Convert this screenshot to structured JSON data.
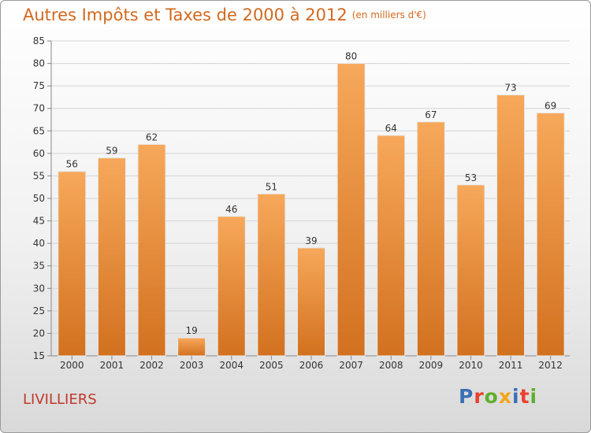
{
  "header": {
    "title": "Autres Impôts et Taxes de 2000 à 2012",
    "unit": "(en milliers d'€)"
  },
  "footer": {
    "city": "LIVILLIERS",
    "logo": "Proxiti"
  },
  "colors": {
    "title": "#d2691e",
    "bar_light": "#f7a85a",
    "bar_dark": "#d2711f",
    "city": "#c0392b",
    "logo_letters": [
      "#3b6fb6",
      "#e8412c",
      "#5fae2e",
      "#f2a51a",
      "#3b6fb6",
      "#e8412c",
      "#5fae2e"
    ]
  },
  "chart_data": {
    "type": "bar",
    "title": "Autres Impôts et Taxes de 2000 à 2012",
    "subtitle": "(en milliers d'€)",
    "xlabel": "",
    "ylabel": "",
    "categories": [
      "2000",
      "2001",
      "2002",
      "2003",
      "2004",
      "2005",
      "2006",
      "2007",
      "2008",
      "2009",
      "2010",
      "2011",
      "2012"
    ],
    "values": [
      56,
      59,
      62,
      19,
      46,
      51,
      39,
      80,
      64,
      67,
      53,
      73,
      69
    ],
    "ylim": [
      15,
      85
    ],
    "yticks": [
      15,
      20,
      25,
      30,
      35,
      40,
      45,
      50,
      55,
      60,
      65,
      70,
      75,
      80,
      85
    ],
    "grid": true,
    "legend": "none",
    "data_labels": true
  }
}
